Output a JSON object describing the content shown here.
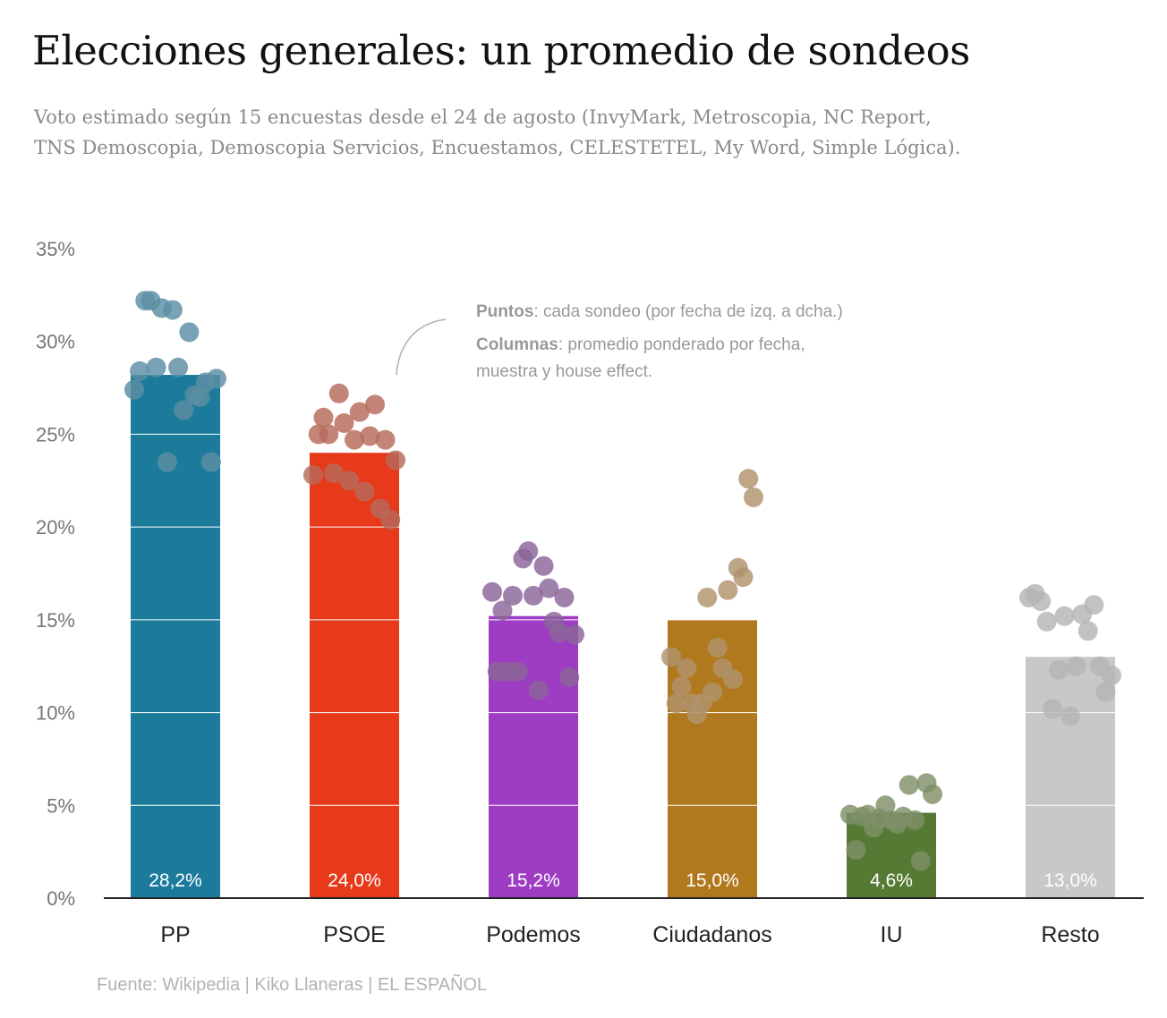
{
  "title": "Elecciones generales: un promedio de sondeos",
  "subtitle_lines": [
    "Voto estimado según 15 encuestas desde el 24 de agosto (InvyMark, Metroscopia, NC Report,",
    "TNS Demoscopia, Demoscopia Servicios, Encuestamos, CELESTETEL, My Word, Simple Lógica)."
  ],
  "annotation": {
    "points_label": "Puntos",
    "points_text": ": cada sondeo (por fecha de izq. a dcha.)",
    "columns_label": "Columnas",
    "columns_text": ": promedio ponderado por fecha,",
    "columns_text_2": "muestra y house effect."
  },
  "source": "Fuente: Wikipedia  |  Kiko Llaneras  |  EL ESPAÑOL",
  "chart_data": {
    "type": "bar",
    "categories": [
      "PP",
      "PSOE",
      "Podemos",
      "Ciudadanos",
      "IU",
      "Resto"
    ],
    "values": [
      28.2,
      24.0,
      15.2,
      15.0,
      4.6,
      13.0
    ],
    "value_labels": [
      "28,2%",
      "24,0%",
      "15,2%",
      "15,0%",
      "4,6%",
      "13,0%"
    ],
    "colors": [
      "#1c7b9b",
      "#e63a1b",
      "#9e3cc4",
      "#b0791e",
      "#567a34",
      "#c8c8c8"
    ],
    "dot_colors": [
      "#5b8fa3",
      "#b76a5c",
      "#8a6598",
      "#b0936c",
      "#7f9068",
      "#b4b4b4"
    ],
    "y_ticks": [
      "0%",
      "5%",
      "10%",
      "15%",
      "20%",
      "25%",
      "30%",
      "35%"
    ],
    "ylim": [
      0,
      35
    ],
    "grid": true,
    "polls": [
      [
        27.4,
        28.4,
        32.2,
        32.2,
        28.6,
        31.8,
        23.5,
        31.7,
        28.6,
        26.3,
        30.5,
        27.1,
        27.0,
        27.8,
        23.5,
        28.0
      ],
      [
        22.8,
        25.0,
        25.9,
        25.0,
        22.9,
        27.2,
        25.6,
        22.5,
        24.7,
        26.2,
        21.9,
        24.9,
        26.6,
        21.0,
        24.7,
        20.4,
        23.6
      ],
      [
        16.5,
        12.2,
        15.5,
        12.2,
        16.3,
        12.2,
        18.3,
        18.7,
        16.3,
        11.2,
        17.9,
        16.7,
        14.9,
        14.3,
        16.2,
        11.9,
        14.2
      ],
      [
        13.0,
        10.5,
        11.4,
        12.4,
        10.5,
        9.9,
        10.5,
        16.2,
        11.1,
        13.5,
        12.4,
        16.6,
        11.8,
        17.8,
        17.3,
        22.6,
        21.6
      ],
      [
        4.5,
        2.6,
        4.4,
        4.5,
        3.8,
        4.3,
        5.0,
        4.2,
        4.0,
        4.4,
        6.1,
        4.2,
        2.0,
        6.2,
        5.6
      ],
      [
        16.2,
        16.4,
        16.0,
        14.9,
        10.2,
        12.3,
        15.2,
        9.8,
        12.5,
        15.3,
        14.4,
        15.8,
        12.5,
        11.1,
        12.0
      ]
    ]
  }
}
